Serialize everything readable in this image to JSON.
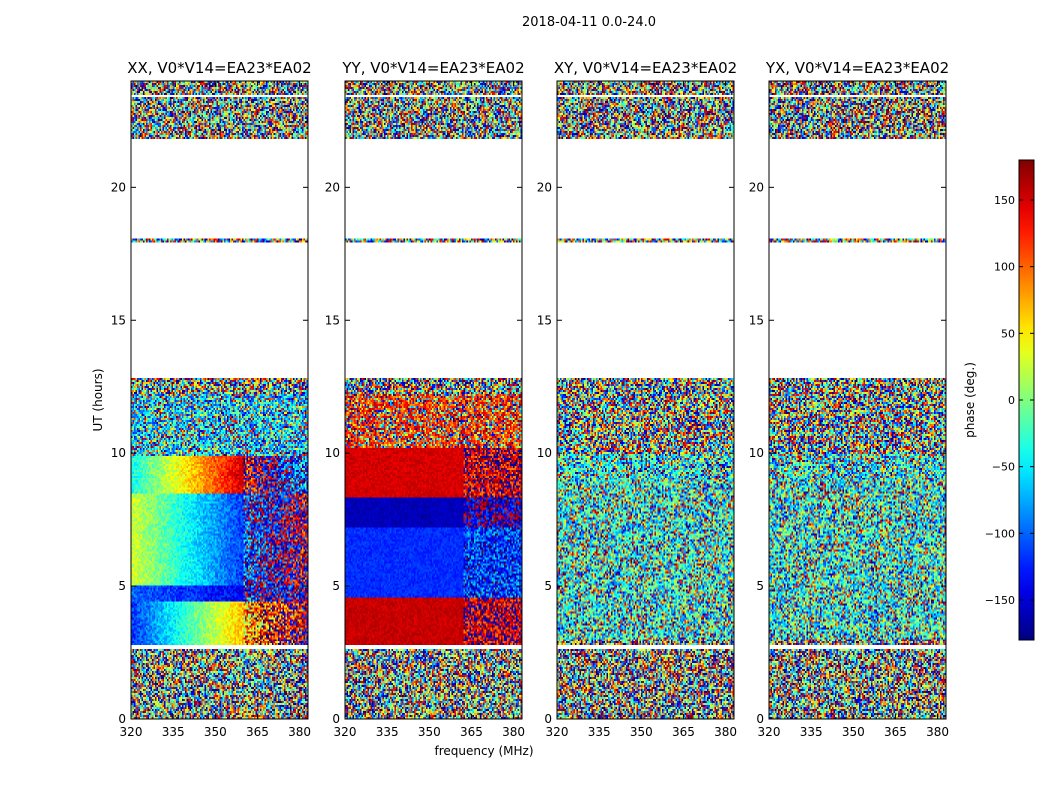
{
  "suptitle": "2018-04-11 0.0-24.0",
  "chart_data": {
    "type": "heatmap",
    "title": "2018-04-11 0.0-24.0",
    "xlabel": "frequency (MHz)",
    "ylabel": "UT (hours)",
    "xlim": [
      320,
      383
    ],
    "ylim": [
      0,
      24
    ],
    "x_ticks": [
      320,
      335,
      350,
      365,
      380
    ],
    "y_ticks": [
      0,
      5,
      10,
      15,
      20
    ],
    "colorbar": {
      "label": "phase (deg.)",
      "range": [
        -180,
        180
      ],
      "ticks": [
        -150,
        -100,
        -50,
        0,
        50,
        100,
        150
      ],
      "tick_labels": [
        "−150",
        "−100",
        "−50",
        "0",
        "50",
        "100",
        "150"
      ],
      "colormap": "jet"
    },
    "valid_time_ranges": [
      [
        0,
        2.6
      ],
      [
        2.8,
        12.8
      ],
      [
        17.9,
        18.1
      ],
      [
        21.8,
        23.4
      ],
      [
        23.5,
        24
      ]
    ],
    "panels": [
      {
        "title": "XX, V0*V14=EA23*EA02",
        "pattern": "xx"
      },
      {
        "title": "YY, V0*V14=EA23*EA02",
        "pattern": "yy"
      },
      {
        "title": "XY, V0*V14=EA23*EA02",
        "pattern": "noise"
      },
      {
        "title": "YX, V0*V14=EA23*EA02",
        "pattern": "noise"
      }
    ]
  }
}
